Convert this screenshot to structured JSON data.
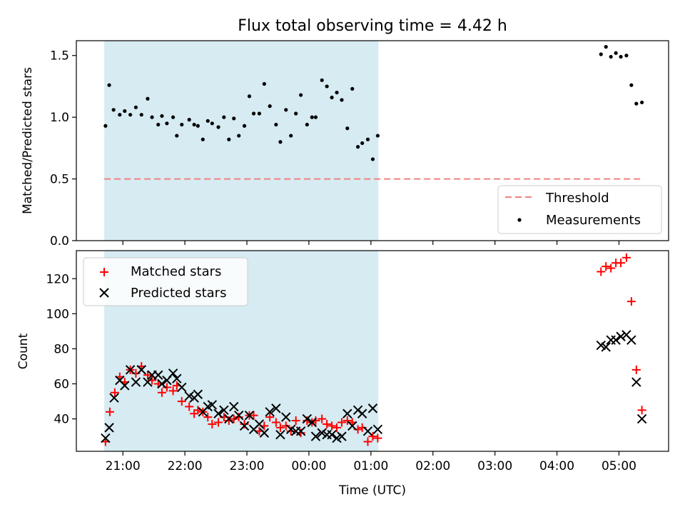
{
  "title": "Flux total observing time = 4.42 h",
  "chart_data": [
    {
      "type": "scatter",
      "panel": "top",
      "ylabel": "Matched/Predicted stars",
      "ylim": [
        0,
        1.62
      ],
      "yticks": [
        0.0,
        0.5,
        1.0,
        1.5
      ],
      "ytick_labels": [
        "0.0",
        "0.5",
        "1.0",
        "1.5"
      ],
      "xlim_hours": [
        -3.75,
        5.8
      ],
      "shaded_span_hours": [
        -3.3,
        1.12
      ],
      "threshold": 0.5,
      "threshold_range_hours": [
        -3.3,
        5.4
      ],
      "legend": {
        "placement": "lower-right",
        "threshold_label": "Threshold",
        "measurements_label": "Measurements"
      },
      "measurements": {
        "x": [
          -3.28,
          -3.22,
          -3.15,
          -3.05,
          -2.97,
          -2.88,
          -2.79,
          -2.7,
          -2.6,
          -2.53,
          -2.43,
          -2.37,
          -2.29,
          -2.19,
          -2.13,
          -2.05,
          -1.93,
          -1.85,
          -1.79,
          -1.71,
          -1.63,
          -1.56,
          -1.46,
          -1.37,
          -1.29,
          -1.21,
          -1.13,
          -1.04,
          -0.96,
          -0.89,
          -0.8,
          -0.72,
          -0.63,
          -0.53,
          -0.46,
          -0.37,
          -0.29,
          -0.21,
          -0.13,
          -0.03,
          0.05,
          0.11,
          0.21,
          0.29,
          0.37,
          0.45,
          0.53,
          0.62,
          0.7,
          0.79,
          0.86,
          0.95,
          1.03,
          1.11,
          4.71,
          4.79,
          4.87,
          4.95,
          5.03,
          5.12,
          5.2,
          5.28,
          5.37
        ],
        "y": [
          0.93,
          1.26,
          1.06,
          1.02,
          1.05,
          1.02,
          1.08,
          1.02,
          1.15,
          1.0,
          0.94,
          1.01,
          0.95,
          1.0,
          0.85,
          0.94,
          0.98,
          0.94,
          0.93,
          0.82,
          0.97,
          0.95,
          0.92,
          1.0,
          0.82,
          0.99,
          0.85,
          0.93,
          1.17,
          1.03,
          1.03,
          1.27,
          1.09,
          0.94,
          0.8,
          1.06,
          0.85,
          1.03,
          1.18,
          0.94,
          1.0,
          1.0,
          1.3,
          1.25,
          1.16,
          1.2,
          1.14,
          0.91,
          1.23,
          0.76,
          0.79,
          0.82,
          0.66,
          0.85,
          1.51,
          1.57,
          1.49,
          1.52,
          1.49,
          1.5,
          1.26,
          1.11,
          1.12
        ]
      }
    },
    {
      "type": "scatter",
      "panel": "bottom",
      "xlabel": "Time (UTC)",
      "ylabel": "Count",
      "ylim": [
        21.5,
        136
      ],
      "yticks": [
        40,
        60,
        80,
        100,
        120
      ],
      "ytick_labels": [
        "40",
        "60",
        "80",
        "100",
        "120"
      ],
      "xticks_hours": [
        -3,
        -2,
        -1,
        0,
        1,
        2,
        3,
        4,
        5
      ],
      "xtick_labels": [
        "21:00",
        "22:00",
        "23:00",
        "00:00",
        "01:00",
        "02:00",
        "03:00",
        "04:00",
        "05:00"
      ],
      "xlim_hours": [
        -3.75,
        5.8
      ],
      "shaded_span_hours": [
        -3.3,
        1.12
      ],
      "legend": {
        "placement": "top-left",
        "matched_label": "Matched stars",
        "predicted_label": "Predicted stars"
      },
      "series": [
        {
          "name": "Matched stars",
          "color": "#ff0000",
          "marker": "plus",
          "x": [
            -3.28,
            -3.21,
            -3.13,
            -3.05,
            -2.97,
            -2.88,
            -2.79,
            -2.7,
            -2.6,
            -2.53,
            -2.43,
            -2.37,
            -2.29,
            -2.19,
            -2.13,
            -2.05,
            -1.93,
            -1.85,
            -1.79,
            -1.71,
            -1.63,
            -1.56,
            -1.46,
            -1.37,
            -1.29,
            -1.21,
            -1.13,
            -1.04,
            -0.96,
            -0.89,
            -0.8,
            -0.72,
            -0.63,
            -0.53,
            -0.46,
            -0.37,
            -0.29,
            -0.21,
            -0.13,
            -0.03,
            0.05,
            0.11,
            0.21,
            0.29,
            0.37,
            0.45,
            0.53,
            0.62,
            0.7,
            0.79,
            0.86,
            0.95,
            1.03,
            1.11,
            4.71,
            4.79,
            4.87,
            4.95,
            5.03,
            5.12,
            5.2,
            5.28,
            5.37
          ],
          "y": [
            27,
            44,
            55,
            64,
            61,
            68,
            66,
            70,
            65,
            62,
            60,
            55,
            58,
            56,
            59,
            50,
            47,
            43,
            45,
            44,
            41,
            37,
            38,
            41,
            39,
            40,
            41,
            37,
            42,
            42,
            33,
            36,
            41,
            38,
            35,
            36,
            33,
            39,
            32,
            39,
            38,
            39,
            40,
            37,
            36,
            35,
            38,
            39,
            38,
            34,
            35,
            27,
            30,
            29,
            124,
            127,
            126,
            129,
            129,
            132,
            107,
            68,
            45
          ]
        },
        {
          "name": "Predicted stars",
          "color": "#000000",
          "marker": "x",
          "x": [
            -3.28,
            -3.22,
            -3.14,
            -3.05,
            -2.97,
            -2.88,
            -2.79,
            -2.7,
            -2.6,
            -2.53,
            -2.43,
            -2.37,
            -2.29,
            -2.19,
            -2.13,
            -2.05,
            -1.93,
            -1.85,
            -1.79,
            -1.71,
            -1.63,
            -1.56,
            -1.46,
            -1.37,
            -1.29,
            -1.21,
            -1.13,
            -1.04,
            -0.96,
            -0.89,
            -0.8,
            -0.72,
            -0.63,
            -0.53,
            -0.46,
            -0.37,
            -0.29,
            -0.21,
            -0.13,
            -0.03,
            0.05,
            0.11,
            0.21,
            0.29,
            0.37,
            0.45,
            0.53,
            0.62,
            0.7,
            0.79,
            0.86,
            0.95,
            1.03,
            1.11,
            4.71,
            4.79,
            4.87,
            4.95,
            5.03,
            5.12,
            5.2,
            5.28,
            5.37
          ],
          "y": [
            29,
            35,
            52,
            62,
            59,
            68,
            61,
            68,
            61,
            65,
            65,
            60,
            62,
            66,
            63,
            58,
            53,
            52,
            54,
            44,
            47,
            48,
            43,
            45,
            40,
            47,
            42,
            36,
            42,
            34,
            37,
            32,
            44,
            46,
            31,
            41,
            34,
            33,
            33,
            40,
            38,
            30,
            32,
            31,
            31,
            29,
            30,
            43,
            36,
            45,
            43,
            33,
            46,
            34,
            82,
            81,
            85,
            85,
            87,
            88,
            85,
            61,
            40
          ]
        }
      ]
    }
  ]
}
